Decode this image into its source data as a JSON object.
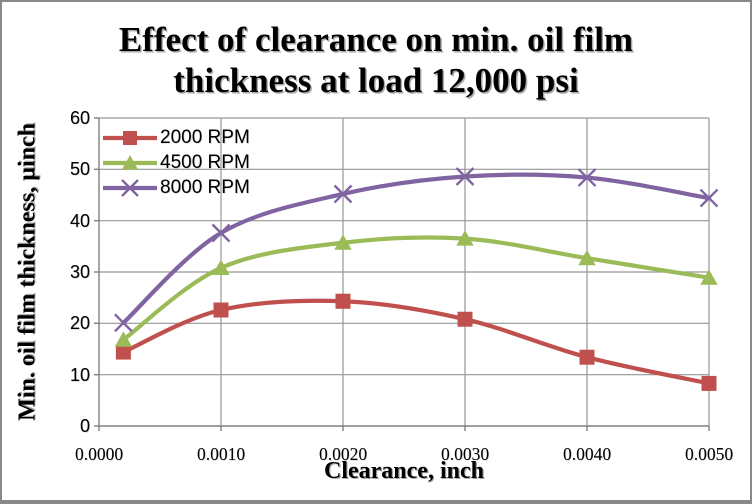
{
  "window": {
    "background": "#ffffff",
    "border_color": "#898989"
  },
  "chart": {
    "title_lines": [
      "Effect of clearance on min. oil film",
      "thickness at load 12,000 psi"
    ],
    "x_axis": {
      "title": "Clearance, inch",
      "tick_labels": [
        "0.0000",
        "0.0010",
        "0.0020",
        "0.0030",
        "0.0040",
        "0.0050"
      ]
    },
    "y_axis": {
      "title": "Min. oil film thickness, µinch",
      "tick_labels": [
        "0",
        "10",
        "20",
        "30",
        "40",
        "50",
        "60"
      ]
    }
  },
  "chart_data": {
    "type": "line",
    "title": "Effect of clearance on min. oil film thickness at load 12,000 psi",
    "xlabel": "Clearance, inch",
    "ylabel": "Min. oil film thickness, µinch",
    "xlim": [
      0,
      0.005
    ],
    "ylim": [
      0,
      60
    ],
    "x_ticks": [
      0,
      0.001,
      0.002,
      0.003,
      0.004,
      0.005
    ],
    "y_ticks": [
      0,
      10,
      20,
      30,
      40,
      50,
      60
    ],
    "grid": true,
    "smooth_lines": true,
    "legend_position": "top-left-inside",
    "x": [
      0.0002,
      0.001,
      0.002,
      0.003,
      0.004,
      0.005
    ],
    "series": [
      {
        "name": "2000 RPM",
        "marker": "square",
        "color": "#C0504D",
        "values": [
          14.4,
          22.6,
          24.3,
          20.8,
          13.4,
          8.3
        ]
      },
      {
        "name": "4500 RPM",
        "marker": "triangle",
        "color": "#9BBB59",
        "values": [
          16.8,
          30.8,
          35.7,
          36.5,
          32.7,
          28.9
        ]
      },
      {
        "name": "8000 RPM",
        "marker": "x",
        "color": "#8064A2",
        "values": [
          20.1,
          37.6,
          45.2,
          48.6,
          48.4,
          44.4
        ]
      }
    ],
    "gridline_color": "#969696",
    "axis_color": "#808080"
  }
}
